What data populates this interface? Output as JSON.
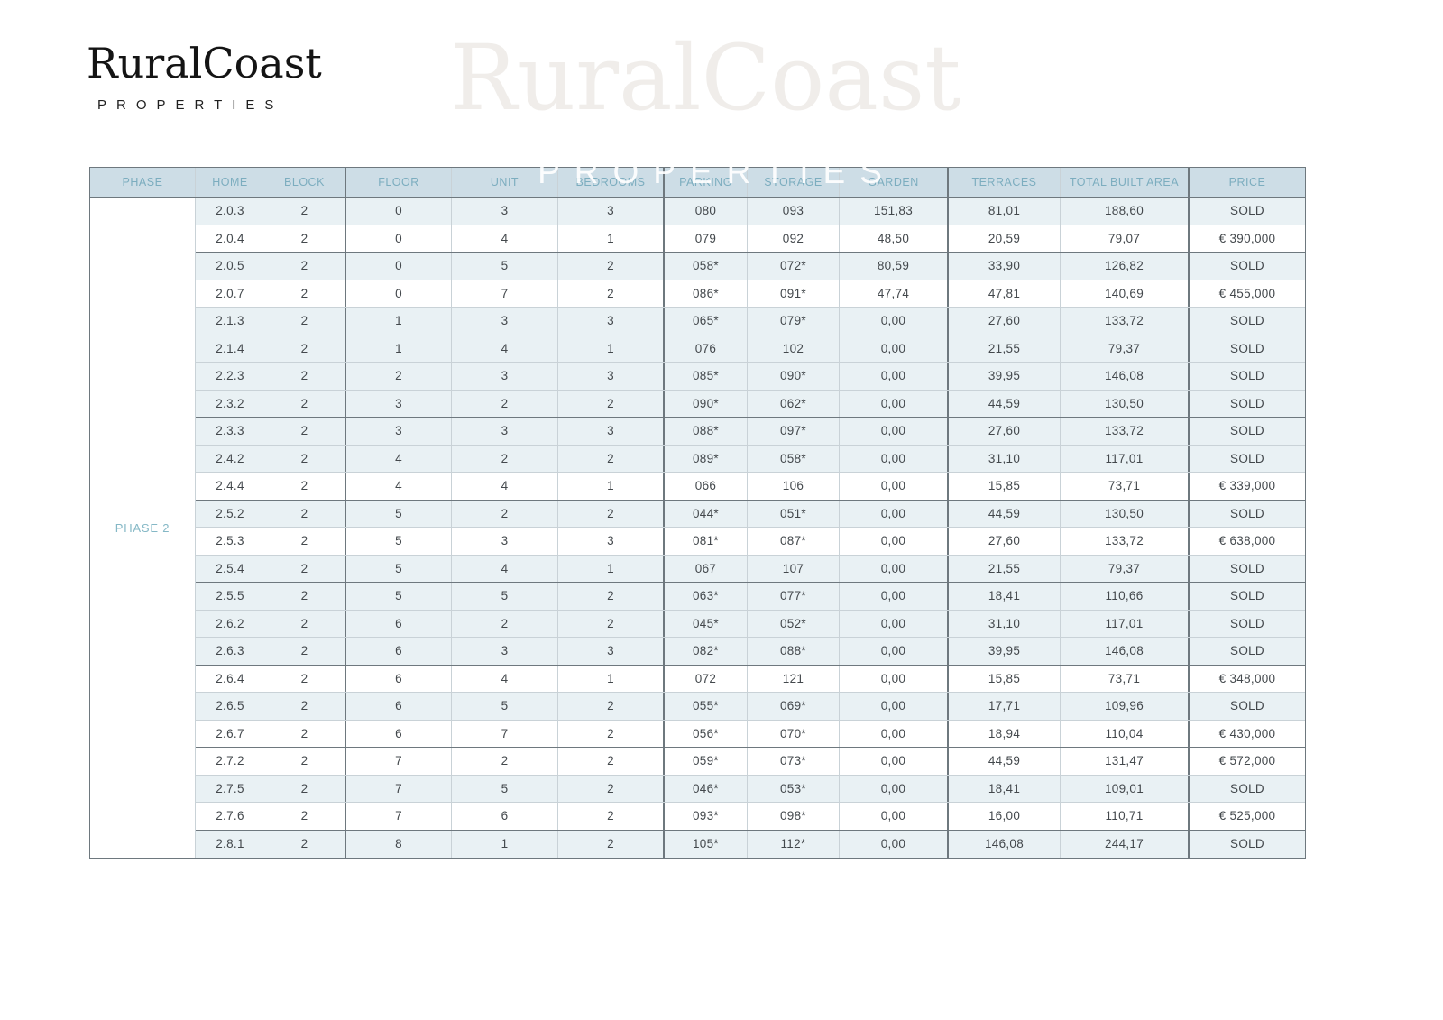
{
  "brand": {
    "name": "RuralCoast",
    "tagline": "P R O P E R T I E S"
  },
  "watermark": {
    "name": "RuralCoast",
    "tagline": "P R O P E R T I E S"
  },
  "table": {
    "phase_label": "PHASE 2",
    "sold_label": "SOLD",
    "columns": [
      "PHASE",
      "HOME",
      "BLOCK",
      "FLOOR",
      "UNIT",
      "BEDROOMS",
      "PARKING",
      "STORAGE",
      "GARDEN",
      "TERRACES",
      "TOTAL BUILT AREA",
      "PRICE"
    ],
    "rows": [
      {
        "home": "2.0.3",
        "block": "2",
        "floor": "0",
        "unit": "3",
        "bedrooms": "3",
        "parking": "080",
        "storage": "093",
        "garden": "151,83",
        "terraces": "81,01",
        "total_built_area": "188,60",
        "price": "SOLD"
      },
      {
        "home": "2.0.4",
        "block": "2",
        "floor": "0",
        "unit": "4",
        "bedrooms": "1",
        "parking": "079",
        "storage": "092",
        "garden": "48,50",
        "terraces": "20,59",
        "total_built_area": "79,07",
        "price": "€ 390,000"
      },
      {
        "home": "2.0.5",
        "block": "2",
        "floor": "0",
        "unit": "5",
        "bedrooms": "2",
        "parking": "058*",
        "storage": "072*",
        "garden": "80,59",
        "terraces": "33,90",
        "total_built_area": "126,82",
        "price": "SOLD"
      },
      {
        "home": "2.0.7",
        "block": "2",
        "floor": "0",
        "unit": "7",
        "bedrooms": "2",
        "parking": "086*",
        "storage": "091*",
        "garden": "47,74",
        "terraces": "47,81",
        "total_built_area": "140,69",
        "price": "€ 455,000"
      },
      {
        "home": "2.1.3",
        "block": "2",
        "floor": "1",
        "unit": "3",
        "bedrooms": "3",
        "parking": "065*",
        "storage": "079*",
        "garden": "0,00",
        "terraces": "27,60",
        "total_built_area": "133,72",
        "price": "SOLD"
      },
      {
        "home": "2.1.4",
        "block": "2",
        "floor": "1",
        "unit": "4",
        "bedrooms": "1",
        "parking": "076",
        "storage": "102",
        "garden": "0,00",
        "terraces": "21,55",
        "total_built_area": "79,37",
        "price": "SOLD"
      },
      {
        "home": "2.2.3",
        "block": "2",
        "floor": "2",
        "unit": "3",
        "bedrooms": "3",
        "parking": "085*",
        "storage": "090*",
        "garden": "0,00",
        "terraces": "39,95",
        "total_built_area": "146,08",
        "price": "SOLD"
      },
      {
        "home": "2.3.2",
        "block": "2",
        "floor": "3",
        "unit": "2",
        "bedrooms": "2",
        "parking": "090*",
        "storage": "062*",
        "garden": "0,00",
        "terraces": "44,59",
        "total_built_area": "130,50",
        "price": "SOLD"
      },
      {
        "home": "2.3.3",
        "block": "2",
        "floor": "3",
        "unit": "3",
        "bedrooms": "3",
        "parking": "088*",
        "storage": "097*",
        "garden": "0,00",
        "terraces": "27,60",
        "total_built_area": "133,72",
        "price": "SOLD"
      },
      {
        "home": "2.4.2",
        "block": "2",
        "floor": "4",
        "unit": "2",
        "bedrooms": "2",
        "parking": "089*",
        "storage": "058*",
        "garden": "0,00",
        "terraces": "31,10",
        "total_built_area": "117,01",
        "price": "SOLD"
      },
      {
        "home": "2.4.4",
        "block": "2",
        "floor": "4",
        "unit": "4",
        "bedrooms": "1",
        "parking": "066",
        "storage": "106",
        "garden": "0,00",
        "terraces": "15,85",
        "total_built_area": "73,71",
        "price": "€ 339,000"
      },
      {
        "home": "2.5.2",
        "block": "2",
        "floor": "5",
        "unit": "2",
        "bedrooms": "2",
        "parking": "044*",
        "storage": "051*",
        "garden": "0,00",
        "terraces": "44,59",
        "total_built_area": "130,50",
        "price": "SOLD"
      },
      {
        "home": "2.5.3",
        "block": "2",
        "floor": "5",
        "unit": "3",
        "bedrooms": "3",
        "parking": "081*",
        "storage": "087*",
        "garden": "0,00",
        "terraces": "27,60",
        "total_built_area": "133,72",
        "price": "€ 638,000"
      },
      {
        "home": "2.5.4",
        "block": "2",
        "floor": "5",
        "unit": "4",
        "bedrooms": "1",
        "parking": "067",
        "storage": "107",
        "garden": "0,00",
        "terraces": "21,55",
        "total_built_area": "79,37",
        "price": "SOLD"
      },
      {
        "home": "2.5.5",
        "block": "2",
        "floor": "5",
        "unit": "5",
        "bedrooms": "2",
        "parking": "063*",
        "storage": "077*",
        "garden": "0,00",
        "terraces": "18,41",
        "total_built_area": "110,66",
        "price": "SOLD"
      },
      {
        "home": "2.6.2",
        "block": "2",
        "floor": "6",
        "unit": "2",
        "bedrooms": "2",
        "parking": "045*",
        "storage": "052*",
        "garden": "0,00",
        "terraces": "31,10",
        "total_built_area": "117,01",
        "price": "SOLD"
      },
      {
        "home": "2.6.3",
        "block": "2",
        "floor": "6",
        "unit": "3",
        "bedrooms": "3",
        "parking": "082*",
        "storage": "088*",
        "garden": "0,00",
        "terraces": "39,95",
        "total_built_area": "146,08",
        "price": "SOLD"
      },
      {
        "home": "2.6.4",
        "block": "2",
        "floor": "6",
        "unit": "4",
        "bedrooms": "1",
        "parking": "072",
        "storage": "121",
        "garden": "0,00",
        "terraces": "15,85",
        "total_built_area": "73,71",
        "price": "€ 348,000"
      },
      {
        "home": "2.6.5",
        "block": "2",
        "floor": "6",
        "unit": "5",
        "bedrooms": "2",
        "parking": "055*",
        "storage": "069*",
        "garden": "0,00",
        "terraces": "17,71",
        "total_built_area": "109,96",
        "price": "SOLD"
      },
      {
        "home": "2.6.7",
        "block": "2",
        "floor": "6",
        "unit": "7",
        "bedrooms": "2",
        "parking": "056*",
        "storage": "070*",
        "garden": "0,00",
        "terraces": "18,94",
        "total_built_area": "110,04",
        "price": "€ 430,000"
      },
      {
        "home": "2.7.2",
        "block": "2",
        "floor": "7",
        "unit": "2",
        "bedrooms": "2",
        "parking": "059*",
        "storage": "073*",
        "garden": "0,00",
        "terraces": "44,59",
        "total_built_area": "131,47",
        "price": "€ 572,000"
      },
      {
        "home": "2.7.5",
        "block": "2",
        "floor": "7",
        "unit": "5",
        "bedrooms": "2",
        "parking": "046*",
        "storage": "053*",
        "garden": "0,00",
        "terraces": "18,41",
        "total_built_area": "109,01",
        "price": "SOLD"
      },
      {
        "home": "2.7.6",
        "block": "2",
        "floor": "7",
        "unit": "6",
        "bedrooms": "2",
        "parking": "093*",
        "storage": "098*",
        "garden": "0,00",
        "terraces": "16,00",
        "total_built_area": "110,71",
        "price": "€ 525,000"
      },
      {
        "home": "2.8.1",
        "block": "2",
        "floor": "8",
        "unit": "1",
        "bedrooms": "2",
        "parking": "105*",
        "storage": "112*",
        "garden": "0,00",
        "terraces": "146,08",
        "total_built_area": "244,17",
        "price": "SOLD"
      }
    ]
  },
  "colors": {
    "header_bg": "#cddde6",
    "sold_row_bg": "#e9f1f4",
    "header_text": "#7cadbf",
    "phase_text": "#85b8c6",
    "cell_text": "#43484c",
    "border_dark": "#6e787e",
    "border_light": "#c9d2d7",
    "brand_text": "#141414"
  }
}
